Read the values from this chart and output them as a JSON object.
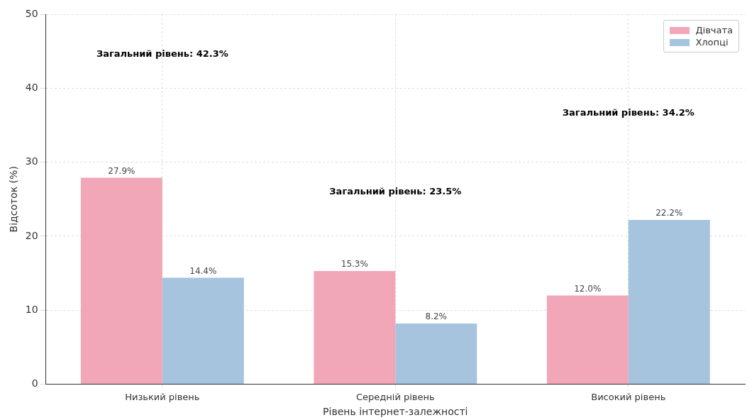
{
  "chart_data": {
    "type": "bar",
    "xlabel": "Рівень інтернет-залежності",
    "ylabel": "Відсоток (%)",
    "categories": [
      "Низький рівень",
      "Середній рівень",
      "Високий рівень"
    ],
    "series": [
      {
        "name": "Дівчата",
        "color": "#f2a7b8",
        "values": [
          27.9,
          15.3,
          12.0
        ],
        "value_labels": [
          "27.9%",
          "15.3%",
          "12.0%"
        ]
      },
      {
        "name": "Хлопці",
        "color": "#a6c4de",
        "values": [
          14.4,
          8.2,
          22.2
        ],
        "value_labels": [
          "14.4%",
          "8.2%",
          "22.2%"
        ]
      }
    ],
    "ylim": [
      0,
      50
    ],
    "yticks": [
      0,
      10,
      20,
      30,
      40,
      50
    ],
    "grid": true,
    "legend": "top right",
    "annotations": [
      "Загальний рівень: 42.3%",
      "Загальний рівень: 23.5%",
      "Загальний рівень: 34.2%"
    ]
  }
}
